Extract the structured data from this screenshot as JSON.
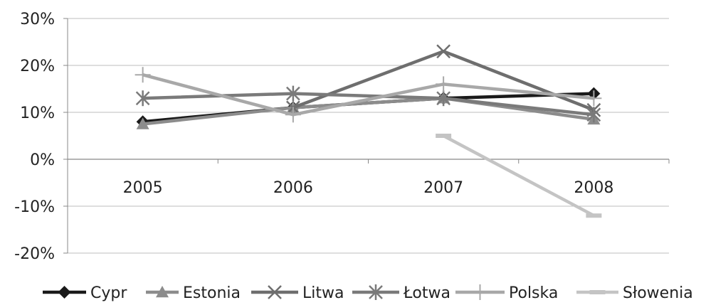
{
  "chart_data": {
    "type": "line",
    "categories": [
      "2005",
      "2006",
      "2007",
      "2008"
    ],
    "ylim": [
      -20,
      30
    ],
    "yticks": [
      30,
      20,
      10,
      0,
      -10,
      -20
    ],
    "ytick_labels": [
      "30%",
      "20%",
      "10%",
      "0%",
      "-10%",
      "-20%"
    ],
    "grid": true,
    "legend": "bottom",
    "series": [
      {
        "name": "Cypr",
        "values": [
          8,
          11,
          13,
          14
        ],
        "color": "#1a1a1a",
        "marker": "diamond"
      },
      {
        "name": "Estonia",
        "values": [
          7.5,
          11,
          13,
          8.5
        ],
        "color": "#8c8c8c",
        "marker": "triangle"
      },
      {
        "name": "Litwa",
        "values": [
          null,
          11,
          23,
          10.5
        ],
        "color": "#6e6e6e",
        "marker": "x"
      },
      {
        "name": "Łotwa",
        "values": [
          13,
          14,
          13,
          9.5
        ],
        "color": "#7a7a7a",
        "marker": "star"
      },
      {
        "name": "Polska",
        "values": [
          18,
          9.5,
          16,
          13
        ],
        "color": "#a8a8a8",
        "marker": "plus"
      },
      {
        "name": "Słowenia",
        "values": [
          null,
          null,
          5,
          -12
        ],
        "color": "#c4c4c4",
        "marker": "dash"
      }
    ]
  }
}
